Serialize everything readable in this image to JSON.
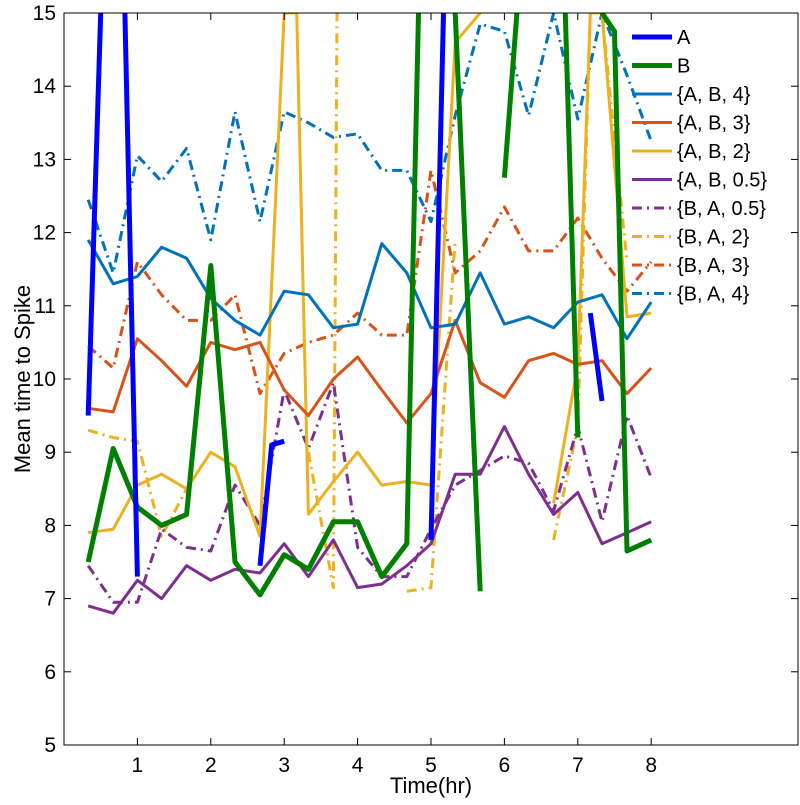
{
  "chart_data": {
    "type": "line",
    "title": "",
    "xlabel": "Time(hr)",
    "ylabel": "Mean time to Spike",
    "xlim": [
      0,
      10.0
    ],
    "ylim": [
      5,
      15
    ],
    "xticks": [
      1,
      2,
      3,
      4,
      5,
      6,
      7,
      8
    ],
    "yticks": [
      5,
      6,
      7,
      8,
      9,
      10,
      11,
      12,
      13,
      14,
      15
    ],
    "grid": false,
    "legend_position": "top-right",
    "series": [
      {
        "name": "A",
        "color": "#0000ff",
        "width": 5,
        "dash": "solid",
        "x": [
          0.33,
          0.5,
          0.67,
          0.83,
          1.0,
          1.17,
          1.33,
          1.5,
          1.67,
          1.83,
          2.0,
          2.17,
          2.33,
          2.5,
          2.67,
          2.83,
          3.0,
          3.17,
          3.33,
          3.5,
          3.67,
          3.83,
          4.0,
          4.17,
          4.33,
          4.5,
          4.67,
          4.83,
          5.0,
          5.17,
          5.33,
          5.5,
          5.67,
          5.83,
          6.0,
          6.17,
          6.33,
          6.5,
          6.67,
          6.83,
          7.0,
          7.17,
          7.33,
          7.5,
          7.67,
          7.83,
          8.0
        ],
        "y": [
          9.5,
          15,
          null,
          15,
          7.3,
          null,
          12.6,
          null,
          8.5,
          null,
          8.65,
          null,
          null,
          null,
          7.45,
          9.1,
          9.15,
          null,
          null,
          null,
          12.85,
          null,
          null,
          null,
          null,
          null,
          null,
          null,
          7.8,
          15,
          null,
          null,
          6.9,
          null,
          null,
          null,
          12.7,
          null,
          7.8,
          null,
          null,
          10.9,
          9.7,
          null,
          13.2,
          null,
          7.95
        ]
      },
      {
        "name": "B",
        "color": "#008000",
        "width": 5,
        "dash": "solid",
        "x": [
          0.33,
          0.67,
          1.0,
          1.33,
          1.67,
          2.0,
          2.33,
          2.67,
          3.0,
          3.33,
          3.67,
          4.0,
          4.33,
          4.67,
          4.83,
          5.0,
          5.17,
          5.33,
          5.67,
          5.83,
          6.0,
          6.17,
          6.33,
          6.67,
          6.83,
          7.0,
          7.17,
          7.33,
          7.5,
          7.67,
          8.0
        ],
        "y": [
          7.5,
          9.05,
          8.25,
          8.0,
          8.15,
          11.55,
          7.5,
          7.05,
          7.6,
          7.4,
          8.05,
          8.05,
          7.3,
          7.75,
          15,
          null,
          null,
          15,
          7.1,
          null,
          12.75,
          15,
          null,
          null,
          15,
          9.2,
          null,
          15,
          14.75,
          7.65,
          7.8
        ]
      },
      {
        "name": "{A, B, 4}",
        "color": "#0072bd",
        "width": 3,
        "dash": "solid",
        "x": [
          0.33,
          0.67,
          1.0,
          1.33,
          1.67,
          2.0,
          2.33,
          2.67,
          3.0,
          3.33,
          3.67,
          4.0,
          4.33,
          4.67,
          5.0,
          5.33,
          5.67,
          6.0,
          6.33,
          6.67,
          7.0,
          7.33,
          7.67,
          8.0
        ],
        "y": [
          11.9,
          11.3,
          11.4,
          11.8,
          11.65,
          11.1,
          10.8,
          10.6,
          11.2,
          11.15,
          10.7,
          10.75,
          11.85,
          11.45,
          10.7,
          10.75,
          11.45,
          10.75,
          10.85,
          10.7,
          11.05,
          11.15,
          10.55,
          11.05
        ]
      },
      {
        "name": "{A, B, 3}",
        "color": "#d95319",
        "width": 3,
        "dash": "solid",
        "x": [
          0.33,
          0.67,
          1.0,
          1.33,
          1.67,
          2.0,
          2.33,
          2.67,
          3.0,
          3.33,
          3.67,
          4.0,
          4.33,
          4.67,
          5.0,
          5.33,
          5.67,
          6.0,
          6.33,
          6.67,
          7.0,
          7.33,
          7.67,
          8.0
        ],
        "y": [
          9.6,
          9.55,
          10.55,
          10.25,
          9.9,
          10.5,
          10.4,
          10.5,
          9.85,
          9.5,
          10.0,
          10.3,
          9.85,
          9.4,
          9.8,
          10.8,
          9.95,
          9.75,
          10.25,
          10.35,
          10.2,
          10.25,
          9.8,
          10.15
        ]
      },
      {
        "name": "{A, B, 2}",
        "color": "#edb120",
        "width": 3,
        "dash": "solid",
        "x": [
          0.33,
          0.67,
          1.0,
          1.33,
          1.67,
          2.0,
          2.33,
          2.67,
          3.0,
          3.17,
          3.33,
          3.67,
          4.0,
          4.33,
          4.67,
          5.0,
          5.33,
          5.67,
          5.83,
          6.0,
          6.67,
          7.0,
          7.17,
          7.33,
          7.67,
          8.0
        ],
        "y": [
          7.9,
          7.95,
          8.55,
          8.7,
          8.5,
          9.0,
          8.8,
          7.85,
          15,
          15,
          8.15,
          8.6,
          9.0,
          8.55,
          8.6,
          8.55,
          14.6,
          15,
          null,
          null,
          8.3,
          10.2,
          15,
          15,
          10.85,
          10.9
        ]
      },
      {
        "name": "{A, B, 0.5}",
        "color": "#7e2f8e",
        "width": 3,
        "dash": "solid",
        "x": [
          0.33,
          0.67,
          1.0,
          1.33,
          1.67,
          2.0,
          2.33,
          2.67,
          3.0,
          3.33,
          3.67,
          4.0,
          4.33,
          4.67,
          5.0,
          5.33,
          5.67,
          6.0,
          6.33,
          6.67,
          7.0,
          7.33,
          7.67,
          8.0
        ],
        "y": [
          6.9,
          6.8,
          7.25,
          7.0,
          7.45,
          7.25,
          7.4,
          7.35,
          7.75,
          7.3,
          7.8,
          7.15,
          7.2,
          7.45,
          7.75,
          8.7,
          8.7,
          9.35,
          8.7,
          8.15,
          8.45,
          7.75,
          7.9,
          8.05
        ]
      },
      {
        "name": "{B, A, 0.5}",
        "color": "#7e2f8e",
        "width": 3,
        "dash": "dashdot",
        "x": [
          0.33,
          0.67,
          1.0,
          1.33,
          1.67,
          2.0,
          2.33,
          2.67,
          3.0,
          3.33,
          3.67,
          4.0,
          4.33,
          4.67,
          5.0,
          5.33,
          5.67,
          6.0,
          6.33,
          6.67,
          7.0,
          7.33,
          7.67,
          8.0
        ],
        "y": [
          7.45,
          6.95,
          6.95,
          7.95,
          7.7,
          7.65,
          8.55,
          8.0,
          9.85,
          9.05,
          9.95,
          7.7,
          7.3,
          7.3,
          7.95,
          8.55,
          8.75,
          8.95,
          8.85,
          8.2,
          9.35,
          8.05,
          9.5,
          8.65
        ]
      },
      {
        "name": "{B, A, 2}",
        "color": "#edb120",
        "width": 3,
        "dash": "dashdot",
        "x": [
          0.33,
          0.67,
          1.0,
          1.33,
          1.67,
          2.0,
          2.33,
          2.67,
          3.0,
          3.33,
          3.67,
          3.72,
          4.0,
          4.67,
          5.0,
          5.33,
          5.67,
          6.0,
          6.33,
          6.67,
          7.0,
          7.17,
          7.33,
          7.67,
          8.0
        ],
        "y": [
          9.3,
          9.2,
          9.15,
          7.85,
          8.5,
          null,
          null,
          null,
          null,
          9.0,
          7.15,
          15,
          null,
          7.1,
          7.15,
          11.9,
          null,
          null,
          null,
          7.8,
          9.35,
          15,
          15,
          11.6,
          null
        ]
      },
      {
        "name": "{B, A, 3}",
        "color": "#d95319",
        "width": 3,
        "dash": "dashdot",
        "x": [
          0.33,
          0.67,
          1.0,
          1.33,
          1.67,
          2.0,
          2.33,
          2.67,
          3.0,
          3.33,
          3.67,
          4.0,
          4.33,
          4.67,
          5.0,
          5.33,
          5.67,
          6.0,
          6.33,
          6.67,
          7.0,
          7.33,
          7.67,
          8.0
        ],
        "y": [
          10.45,
          10.15,
          11.6,
          11.15,
          10.8,
          10.8,
          11.15,
          9.8,
          10.35,
          10.5,
          10.6,
          10.9,
          10.6,
          10.6,
          12.85,
          11.45,
          11.75,
          12.35,
          11.75,
          11.75,
          12.2,
          11.65,
          11.2,
          11.6
        ]
      },
      {
        "name": "{B, A, 4}",
        "color": "#0072bd",
        "width": 3,
        "dash": "dashdot",
        "x": [
          0.33,
          0.67,
          1.0,
          1.33,
          1.67,
          2.0,
          2.33,
          2.67,
          3.0,
          3.33,
          3.67,
          4.0,
          4.33,
          4.67,
          5.0,
          5.33,
          5.67,
          6.0,
          6.33,
          6.67,
          7.0,
          7.33,
          7.67,
          8.0
        ],
        "y": [
          12.45,
          11.45,
          13.05,
          12.7,
          13.15,
          11.9,
          13.65,
          12.15,
          13.65,
          13.5,
          13.3,
          13.35,
          12.85,
          12.85,
          12.15,
          13.6,
          14.85,
          14.75,
          13.6,
          15,
          13.55,
          15,
          14.15,
          13.25
        ]
      }
    ]
  }
}
